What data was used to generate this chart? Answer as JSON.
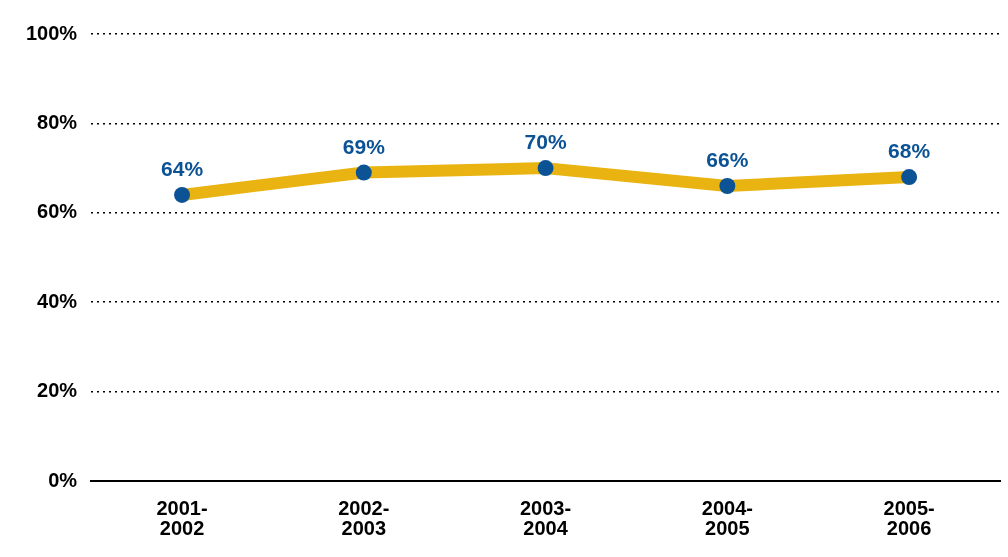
{
  "chart_data": {
    "type": "line",
    "categories": [
      "2001-2002",
      "2002-2003",
      "2003-2004",
      "2004-2005",
      "2005-2006"
    ],
    "series": [
      {
        "color": "#e9b312",
        "colors": [
          "#0b5394",
          "#0b5394",
          "#0b5394",
          "#0b5394",
          "#0b5394"
        ],
        "values": [
          64,
          69,
          70,
          66,
          68
        ],
        "value_labels": [
          "64%",
          "69%",
          "70%",
          "66%",
          "68%"
        ]
      }
    ],
    "ylim": [
      0,
      100
    ],
    "yticks": [
      {
        "value": 0,
        "label": "0%"
      },
      {
        "value": 20,
        "label": "20%"
      },
      {
        "value": 40,
        "label": "40%"
      },
      {
        "value": 60,
        "label": "60%"
      },
      {
        "value": 80,
        "label": "80%"
      },
      {
        "value": 100,
        "label": "100%"
      }
    ],
    "grid": "y",
    "legend": false,
    "marker": "circle",
    "line_style": "solid"
  }
}
